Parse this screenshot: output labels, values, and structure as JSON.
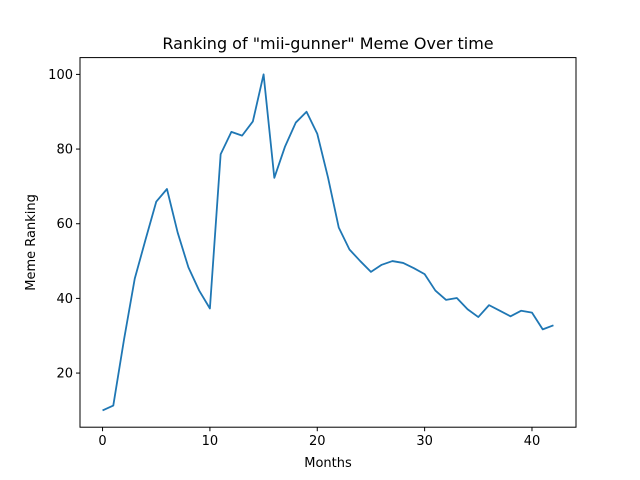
{
  "chart_data": {
    "type": "line",
    "title": "Ranking of \"mii-gunner\" Meme Over time",
    "xlabel": "Months",
    "ylabel": "Meme Ranking",
    "xlim": [
      -2.1,
      44.1
    ],
    "ylim": [
      5.5,
      104.5
    ],
    "xticks": [
      0,
      10,
      20,
      30,
      40
    ],
    "yticks": [
      20,
      40,
      60,
      80,
      100
    ],
    "grid": false,
    "series": [
      {
        "color": "#1f77b4",
        "x": [
          0,
          1,
          2,
          3,
          4,
          5,
          6,
          7,
          8,
          9,
          10,
          11,
          12,
          13,
          14,
          15,
          16,
          17,
          18,
          19,
          20,
          21,
          22,
          23,
          24,
          25,
          26,
          27,
          28,
          29,
          30,
          31,
          32,
          33,
          34,
          35,
          36,
          37,
          38,
          39,
          40,
          41,
          42
        ],
        "y": [
          10,
          11.3,
          29,
          45.3,
          55.7,
          65.9,
          69.3,
          57.6,
          48.3,
          42.1,
          37.3,
          78.6,
          84.6,
          83.6,
          87.4,
          100,
          72.3,
          80.7,
          87.1,
          90,
          84.1,
          72.4,
          59,
          53.1,
          50,
          47.1,
          49,
          50,
          49.5,
          48.1,
          46.5,
          42.1,
          39.6,
          40.1,
          37.1,
          35,
          38.2,
          36.7,
          35.2,
          36.7,
          36.2,
          31.7,
          32.8
        ]
      }
    ]
  }
}
